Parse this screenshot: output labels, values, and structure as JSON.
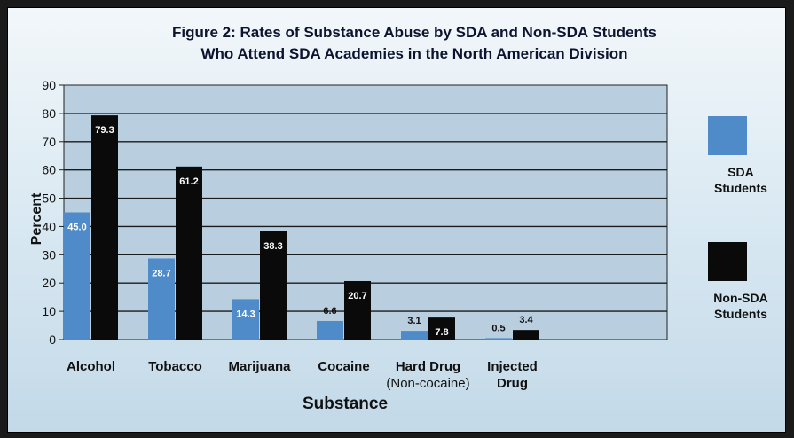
{
  "chart_data": {
    "type": "bar",
    "title_line1": "Figure 2:  Rates of Substance Abuse by SDA and Non-SDA Students",
    "title_line2": "Who Attend SDA Academies in the North American Division",
    "xlabel": "Substance",
    "ylabel": "Percent",
    "ylim": [
      0,
      90
    ],
    "yticks": [
      "0",
      "10",
      "20",
      "30",
      "40",
      "50",
      "60",
      "70",
      "80",
      "90"
    ],
    "grid": true,
    "legend_position": "right",
    "categories": [
      {
        "line1": "Alcohol",
        "line2": ""
      },
      {
        "line1": "Tobacco",
        "line2": ""
      },
      {
        "line1": "Marijuana",
        "line2": ""
      },
      {
        "line1": "Cocaine",
        "line2": ""
      },
      {
        "line1": "Hard Drug",
        "line2": "(Non-cocaine)"
      },
      {
        "line1": "Injected",
        "line2": "Drug"
      }
    ],
    "series": [
      {
        "legend_line1": "SDA",
        "legend_line2": "Students",
        "color": "#4f8bc9",
        "values": [
          45.0,
          28.7,
          14.3,
          6.6,
          3.1,
          0.5
        ],
        "labels": [
          "45.0",
          "28.7",
          "14.3",
          "6.6",
          "3.1",
          "0.5"
        ]
      },
      {
        "legend_line1": "Non-SDA",
        "legend_line2": "Students",
        "color": "#0a0a0a",
        "values": [
          79.3,
          61.2,
          38.3,
          20.7,
          7.8,
          3.4
        ],
        "labels": [
          "79.3",
          "61.2",
          "38.3",
          "20.7",
          "7.8",
          "3.4"
        ]
      }
    ]
  }
}
